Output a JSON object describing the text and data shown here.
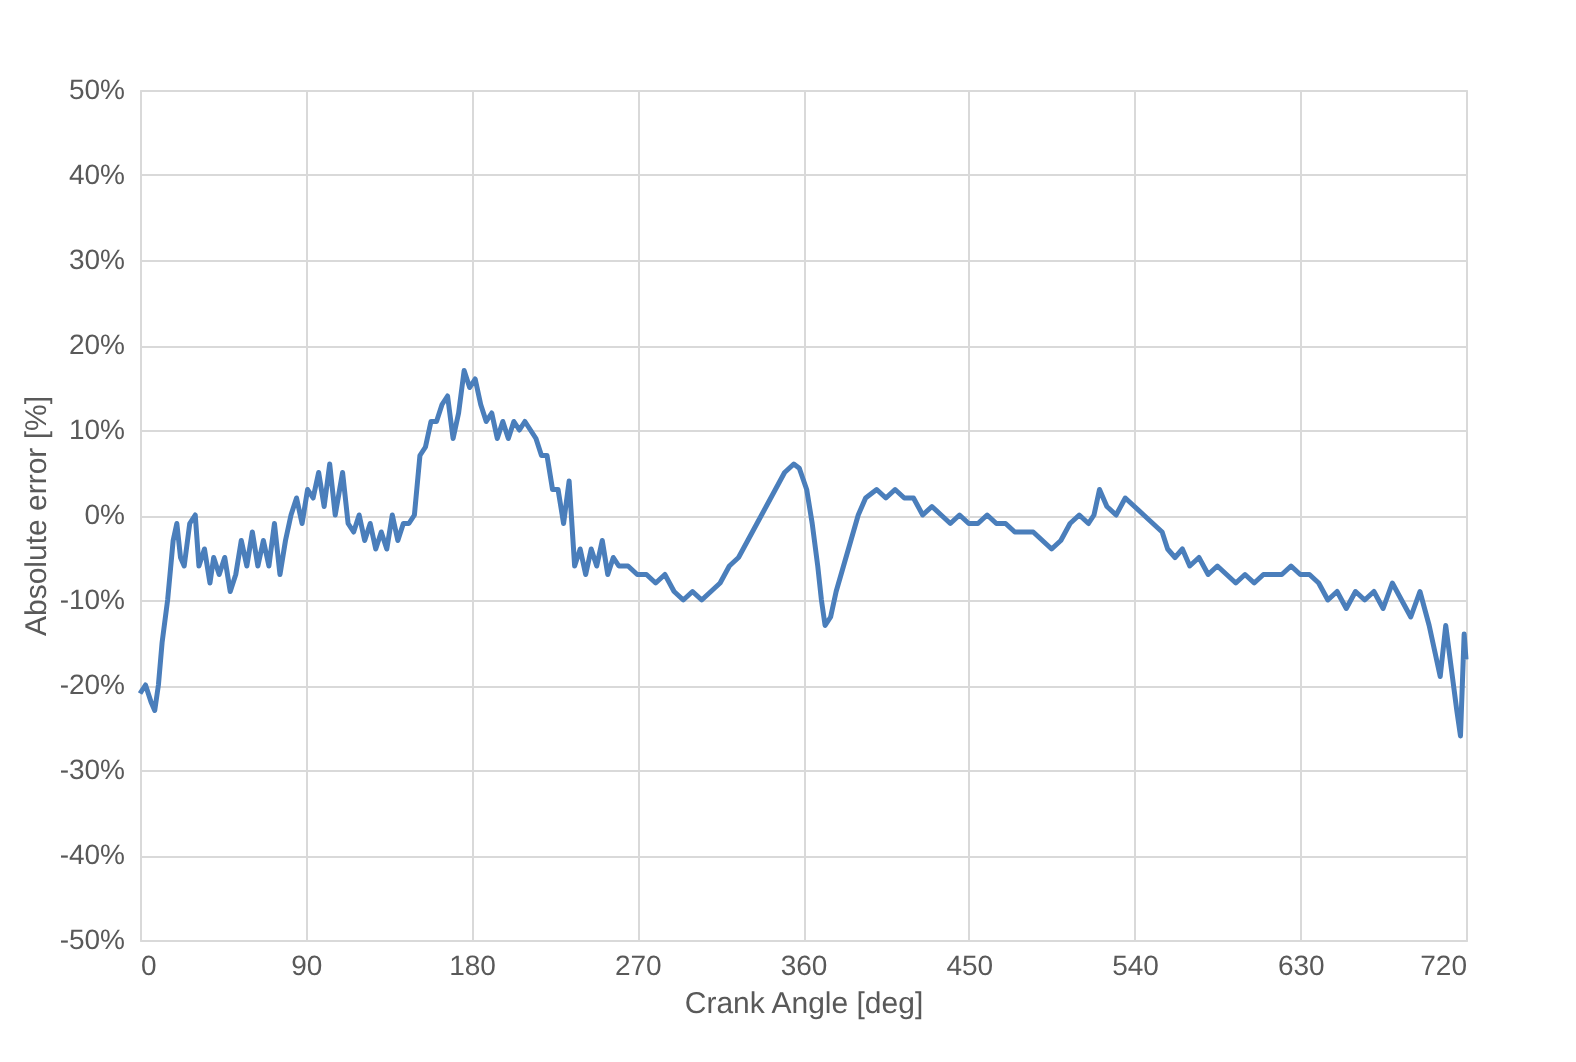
{
  "chart_data": {
    "type": "line",
    "xlabel": "Crank Angle [deg]",
    "ylabel": "Absolute error [%]",
    "xlim": [
      0,
      720
    ],
    "xticks": [
      0,
      90,
      180,
      270,
      360,
      450,
      540,
      630,
      720
    ],
    "ylim": [
      -50,
      50
    ],
    "yticks": [
      {
        "value": -50,
        "label": "-50%"
      },
      {
        "value": -40,
        "label": "-40%"
      },
      {
        "value": -30,
        "label": "-30%"
      },
      {
        "value": -20,
        "label": "-20%"
      },
      {
        "value": -10,
        "label": "-10%"
      },
      {
        "value": 0,
        "label": "0%"
      },
      {
        "value": 10,
        "label": "10%"
      },
      {
        "value": 20,
        "label": "20%"
      },
      {
        "value": 30,
        "label": "30%"
      },
      {
        "value": 40,
        "label": "40%"
      },
      {
        "value": 50,
        "label": "50%"
      }
    ],
    "grid": true,
    "marker": "none",
    "line_style": "solid",
    "x": [
      0,
      3,
      6,
      8,
      10,
      12,
      15,
      18,
      20,
      22,
      24,
      27,
      30,
      32,
      35,
      38,
      40,
      43,
      46,
      49,
      52,
      55,
      58,
      61,
      64,
      67,
      70,
      73,
      76,
      79,
      82,
      85,
      88,
      91,
      94,
      97,
      100,
      103,
      106,
      110,
      113,
      116,
      119,
      122,
      125,
      128,
      131,
      134,
      137,
      140,
      143,
      146,
      149,
      152,
      155,
      158,
      161,
      164,
      167,
      170,
      173,
      176,
      179,
      182,
      185,
      188,
      191,
      194,
      197,
      200,
      203,
      206,
      209,
      212,
      215,
      218,
      221,
      224,
      227,
      230,
      233,
      236,
      239,
      242,
      245,
      248,
      251,
      254,
      257,
      260,
      265,
      270,
      275,
      280,
      285,
      290,
      295,
      300,
      305,
      310,
      315,
      320,
      325,
      330,
      335,
      340,
      345,
      350,
      355,
      358,
      362,
      365,
      368,
      370,
      372,
      375,
      378,
      382,
      386,
      390,
      394,
      400,
      405,
      410,
      415,
      420,
      425,
      430,
      435,
      440,
      445,
      450,
      455,
      460,
      465,
      470,
      475,
      480,
      485,
      490,
      495,
      500,
      505,
      510,
      515,
      518,
      521,
      525,
      530,
      535,
      540,
      545,
      550,
      555,
      558,
      562,
      566,
      570,
      575,
      580,
      585,
      590,
      595,
      600,
      605,
      610,
      615,
      620,
      625,
      630,
      635,
      640,
      645,
      650,
      655,
      660,
      665,
      670,
      675,
      680,
      685,
      690,
      695,
      700,
      703,
      706,
      709,
      712,
      715,
      717,
      719,
      720
    ],
    "series": [
      {
        "color": "#4a7ebb",
        "values": [
          -21,
          -20,
          -22,
          -23,
          -20,
          -15,
          -10,
          -3,
          -1,
          -5,
          -6,
          -1,
          0,
          -6,
          -4,
          -8,
          -5,
          -7,
          -5,
          -9,
          -7,
          -3,
          -6,
          -2,
          -6,
          -3,
          -6,
          -1,
          -7,
          -3,
          0,
          2,
          -1,
          3,
          2,
          5,
          1,
          6,
          0,
          5,
          -1,
          -2,
          0,
          -3,
          -1,
          -4,
          -2,
          -4,
          0,
          -3,
          -1,
          -1,
          0,
          7,
          8,
          11,
          11,
          13,
          14,
          9,
          12,
          17,
          15,
          16,
          13,
          11,
          12,
          9,
          11,
          9,
          11,
          10,
          11,
          10,
          9,
          7,
          7,
          3,
          3,
          -1,
          4,
          -6,
          -4,
          -7,
          -4,
          -6,
          -3,
          -7,
          -5,
          -6,
          -6,
          -7,
          -7,
          -8,
          -7,
          -9,
          -10,
          -9,
          -10,
          -9,
          -8,
          -6,
          -5,
          -3,
          -1,
          1,
          3,
          5,
          6,
          5.5,
          3,
          -1,
          -6,
          -10,
          -13,
          -12,
          -9,
          -6,
          -3,
          0,
          2,
          3,
          2,
          3,
          2,
          2,
          0,
          1,
          0,
          -1,
          0,
          -1,
          -1,
          0,
          -1,
          -1,
          -2,
          -2,
          -2,
          -3,
          -4,
          -3,
          -1,
          0,
          -1,
          0,
          3,
          1,
          0,
          2,
          1,
          0,
          -1,
          -2,
          -4,
          -5,
          -4,
          -6,
          -5,
          -7,
          -6,
          -7,
          -8,
          -7,
          -8,
          -7,
          -7,
          -7,
          -6,
          -7,
          -7,
          -8,
          -10,
          -9,
          -11,
          -9,
          -10,
          -9,
          -11,
          -8,
          -10,
          -12,
          -9,
          -13,
          -16,
          -19,
          -13,
          -18,
          -23,
          -26,
          -14,
          -17
        ]
      }
    ]
  }
}
